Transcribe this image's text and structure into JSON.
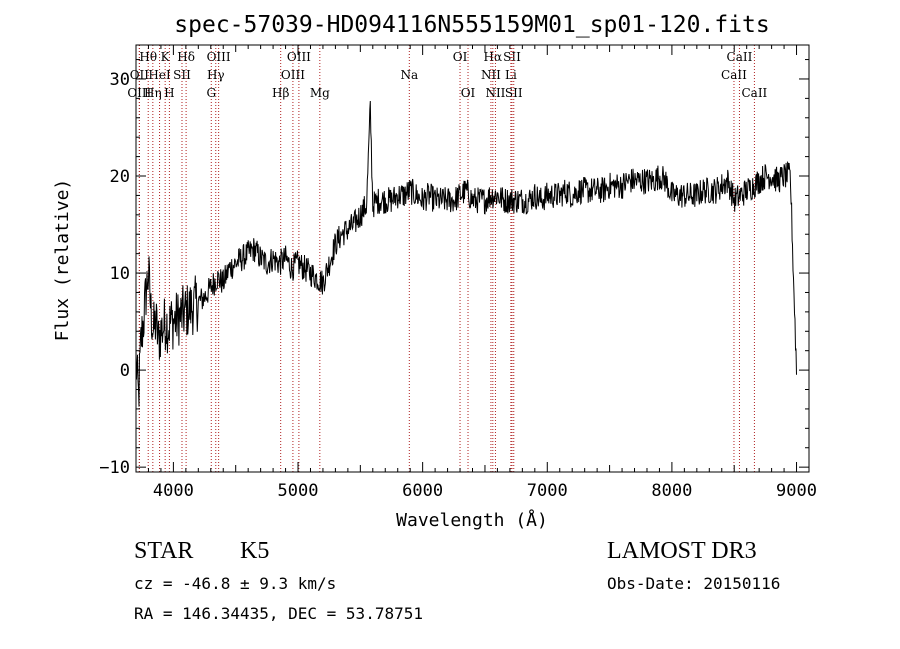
{
  "chart_data": {
    "type": "line",
    "title": "spec-57039-HD094116N555159M01_sp01-120.fits",
    "xlabel": "Wavelength (Å)",
    "ylabel": "Flux (relative)",
    "xlim": [
      3700,
      9100
    ],
    "ylim": [
      -10.5,
      33.5
    ],
    "x_ticks": [
      4000,
      5000,
      6000,
      7000,
      8000,
      9000
    ],
    "x_tick_labels": [
      "4000",
      "5000",
      "6000",
      "7000",
      "8000",
      "9000"
    ],
    "y_ticks": [
      -10,
      0,
      10,
      20,
      30
    ],
    "y_tick_labels": [
      "-10",
      "0",
      "10",
      "20",
      "30"
    ],
    "series": [
      {
        "name": "spectrum",
        "x": [
          3700,
          3720,
          3740,
          3760,
          3780,
          3800,
          3820,
          3840,
          3860,
          3880,
          3900,
          3920,
          3940,
          3960,
          3980,
          4000,
          4050,
          4100,
          4150,
          4200,
          4250,
          4300,
          4350,
          4400,
          4450,
          4500,
          4550,
          4600,
          4650,
          4700,
          4750,
          4800,
          4850,
          4900,
          4950,
          5000,
          5050,
          5100,
          5150,
          5200,
          5250,
          5300,
          5350,
          5400,
          5450,
          5500,
          5550,
          5580,
          5600,
          5650,
          5700,
          5750,
          5800,
          5850,
          5900,
          5950,
          6000,
          6050,
          6100,
          6150,
          6200,
          6250,
          6300,
          6350,
          6400,
          6450,
          6500,
          6550,
          6600,
          6650,
          6700,
          6750,
          6800,
          6850,
          6900,
          6950,
          7000,
          7050,
          7100,
          7150,
          7200,
          7250,
          7300,
          7350,
          7400,
          7450,
          7500,
          7550,
          7600,
          7650,
          7700,
          7750,
          7800,
          7850,
          7900,
          7950,
          8000,
          8050,
          8100,
          8150,
          8200,
          8250,
          8300,
          8350,
          8400,
          8450,
          8500,
          8550,
          8600,
          8650,
          8700,
          8750,
          8800,
          8850,
          8900,
          8950,
          9000
        ],
        "y": [
          1,
          -3,
          3,
          5,
          8,
          10,
          6,
          4,
          5,
          3,
          4,
          4.5,
          5,
          4.5,
          5,
          5,
          5.5,
          6,
          6.5,
          7,
          7.5,
          8.5,
          9.5,
          9,
          10.5,
          11,
          11.5,
          12,
          12.5,
          11.5,
          11,
          11.5,
          11,
          11.5,
          10.5,
          11,
          10.5,
          10,
          9.5,
          9,
          11,
          13,
          14,
          14.5,
          15,
          16,
          17,
          27,
          17,
          17.5,
          17.5,
          17.5,
          18,
          18,
          18.5,
          18,
          17.5,
          18,
          17.5,
          17.5,
          17.5,
          17.5,
          18,
          18.5,
          17.5,
          17.5,
          17.5,
          18,
          18,
          17.5,
          17.5,
          17.5,
          17.5,
          17.5,
          18,
          17.5,
          18,
          18,
          18,
          18.5,
          18,
          18.5,
          18.5,
          18.5,
          18.5,
          18.5,
          19,
          19,
          19,
          19.5,
          19.5,
          19.5,
          19.5,
          19.5,
          20,
          19.5,
          18,
          18,
          18,
          18,
          18,
          18.5,
          18.5,
          18.5,
          19,
          19.5,
          17.5,
          18,
          18.5,
          19,
          19.5,
          20,
          20,
          19.5,
          20,
          20,
          0
        ],
        "noise": 1.0
      }
    ],
    "line_markers": [
      {
        "label": "Hθ",
        "x": 3798,
        "row": 0
      },
      {
        "label": "OII",
        "x": 3727,
        "row": 1
      },
      {
        "label": "OIII",
        "x": 3727,
        "row": 2
      },
      {
        "label": "Hη",
        "x": 3835,
        "row": 2
      },
      {
        "label": "HeI",
        "x": 3889,
        "row": 1
      },
      {
        "label": "K",
        "x": 3934,
        "row": 0
      },
      {
        "label": "H",
        "x": 3968,
        "row": 2
      },
      {
        "label": "SII",
        "x": 4069,
        "row": 1
      },
      {
        "label": "Hδ",
        "x": 4102,
        "row": 0
      },
      {
        "label": "OIII",
        "x": 4363,
        "row": 0
      },
      {
        "label": "Hγ",
        "x": 4340,
        "row": 1
      },
      {
        "label": "G",
        "x": 4304,
        "row": 2
      },
      {
        "label": "Hβ",
        "x": 4861,
        "row": 2
      },
      {
        "label": "OIII",
        "x": 5007,
        "row": 0
      },
      {
        "label": "OIII",
        "x": 4959,
        "row": 1
      },
      {
        "label": "Mg",
        "x": 5175,
        "row": 2
      },
      {
        "label": "Na",
        "x": 5893,
        "row": 1
      },
      {
        "label": "OI",
        "x": 6300,
        "row": 0
      },
      {
        "label": "OI",
        "x": 6364,
        "row": 2
      },
      {
        "label": "Hα",
        "x": 6563,
        "row": 0
      },
      {
        "label": "NII",
        "x": 6548,
        "row": 1
      },
      {
        "label": "NII",
        "x": 6584,
        "row": 2
      },
      {
        "label": "SII",
        "x": 6717,
        "row": 0
      },
      {
        "label": "Li",
        "x": 6708,
        "row": 1
      },
      {
        "label": "SII",
        "x": 6731,
        "row": 2
      },
      {
        "label": "CaII",
        "x": 8542,
        "row": 0
      },
      {
        "label": "CaII",
        "x": 8498,
        "row": 1
      },
      {
        "label": "CaII",
        "x": 8662,
        "row": 2
      }
    ]
  },
  "info": {
    "class_label": "STAR",
    "subclass": "K5",
    "survey": "LAMOST DR3",
    "redshift": "cz = -46.8 ± 9.3 km/s",
    "obs_date": "Obs-Date: 20150116",
    "coords": "RA = 146.34435, DEC =  53.78751"
  }
}
